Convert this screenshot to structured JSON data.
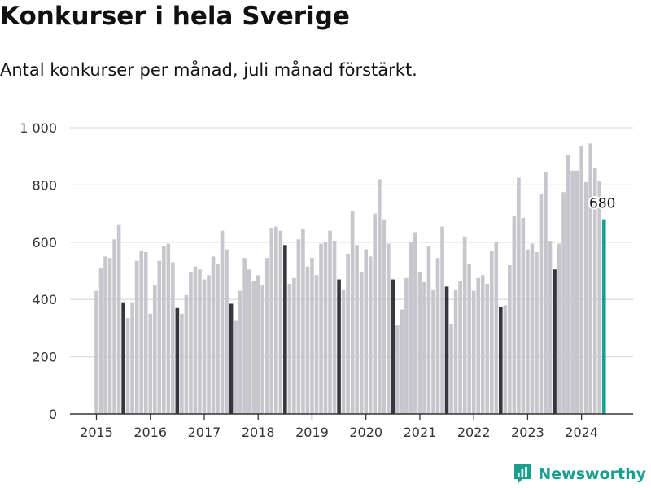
{
  "header": {
    "title": "Konkurser i hela Sverige",
    "subtitle": "Antal konkurser per månad, juli månad förstärkt."
  },
  "brand": {
    "name": "Newsworthy",
    "icon": "chart-logo-icon",
    "color": "#1a9e8e"
  },
  "colors": {
    "bar": "#c6c6cc",
    "july": "#36363f",
    "latest": "#1a9e8e",
    "grid": "#dcdcdc",
    "axis": "#333333"
  },
  "chart_data": {
    "type": "bar",
    "title": "Konkurser i hela Sverige",
    "subtitle": "Antal konkurser per månad, juli månad förstärkt.",
    "xlabel": "",
    "ylabel": "",
    "ylim": [
      0,
      1000
    ],
    "y_ticks": [
      0,
      200,
      400,
      600,
      800,
      1000
    ],
    "y_tick_labels": [
      "0",
      "200",
      "400",
      "600",
      "800",
      "1 000"
    ],
    "x_tick_labels": [
      "2015",
      "2016",
      "2017",
      "2018",
      "2019",
      "2020",
      "2021",
      "2022",
      "2023",
      "2024"
    ],
    "grid": true,
    "highlight_month": "juli",
    "series": [
      {
        "values": [
          430,
          510,
          550,
          545,
          610,
          660,
          390,
          335,
          390,
          535,
          570,
          565,
          350,
          450,
          535,
          585,
          595,
          530,
          370,
          350,
          415,
          495,
          515,
          505,
          470,
          485,
          550,
          525,
          640,
          575,
          385,
          325,
          430,
          545,
          505,
          465,
          485,
          450,
          545,
          650,
          655,
          640,
          590,
          455,
          475,
          610,
          645,
          515,
          545,
          485,
          595,
          600,
          640,
          605,
          470,
          435,
          560,
          710,
          590,
          495,
          575,
          550,
          700,
          820,
          680,
          595,
          470,
          310,
          365,
          475,
          600,
          635,
          495,
          460,
          585,
          435,
          545,
          655,
          445,
          315,
          435,
          465,
          620,
          525,
          430,
          475,
          485,
          455,
          570,
          600,
          375,
          380,
          520,
          690,
          825,
          685,
          575,
          595,
          565,
          770,
          845,
          605,
          505,
          595,
          775,
          905,
          850,
          850,
          935,
          810,
          945,
          860,
          815,
          680
        ]
      }
    ],
    "data_labels": [
      {
        "label": "680",
        "value": 680
      }
    ]
  }
}
